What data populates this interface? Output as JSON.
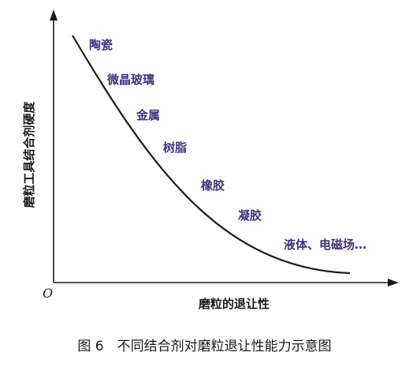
{
  "diagram": {
    "y_axis_label": "磨粒工具结合剂硬度",
    "x_axis_label": "磨粒的退让性",
    "origin_label": "O",
    "curve_labels": [
      "陶瓷",
      "微晶玻璃",
      "金属",
      "树脂",
      "橡胶",
      "凝胶",
      "液体、电磁场…"
    ],
    "colors": {
      "label_text": "#3d3480",
      "curve": "#1a1a1a",
      "axis": "#1a1a1a"
    }
  },
  "caption": "图 6　不同结合剂对磨粒退让性能力示意图"
}
